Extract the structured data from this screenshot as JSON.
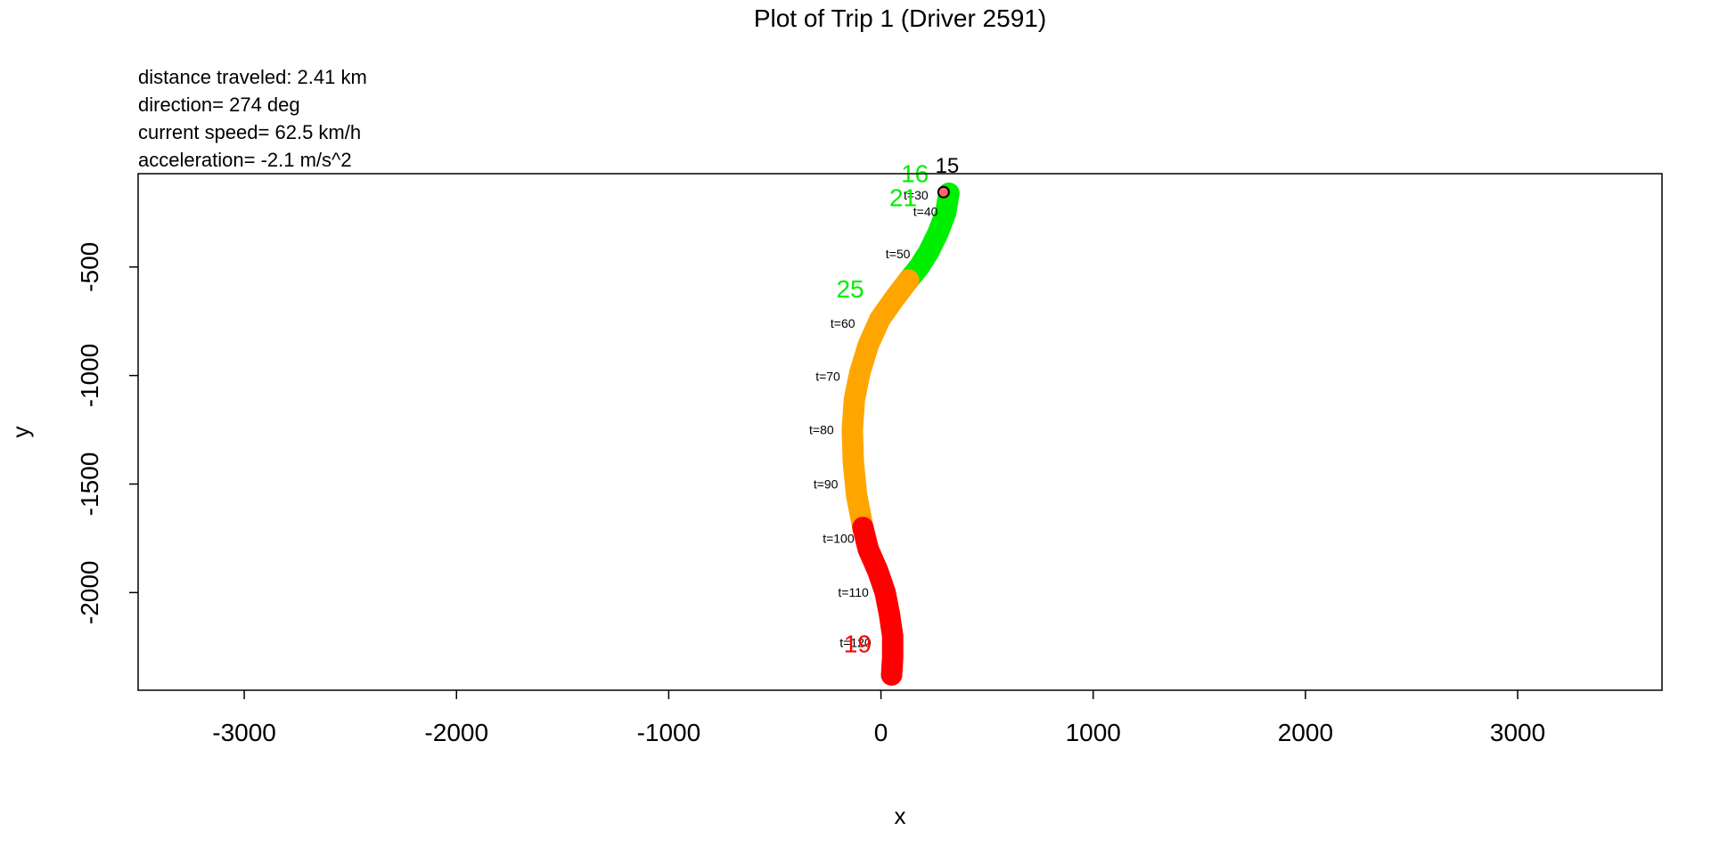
{
  "chart_data": {
    "type": "line",
    "title": "Plot of Trip 1 (Driver 2591)",
    "info": {
      "distance": "distance traveled: 2.41 km",
      "direction": "direction=  274 deg",
      "speed": "current speed= 62.5 km/h",
      "acceleration": "acceleration= -2.1 m/s^2"
    },
    "xlabel": "x",
    "ylabel": "y",
    "xlim": [
      -3500,
      3680
    ],
    "ylim": [
      -2450,
      -70
    ],
    "x_ticks": [
      -3000,
      -2000,
      -1000,
      0,
      1000,
      2000,
      3000
    ],
    "x_tick_labels": [
      "-3000",
      "-2000",
      "-1000",
      "0",
      "1000",
      "2000",
      "3000"
    ],
    "y_ticks": [
      -500,
      -1000,
      -1500,
      -2000
    ],
    "y_tick_labels": [
      "-500",
      "-1000",
      "-1500",
      "-2000"
    ],
    "start_point": {
      "x": 295,
      "y": -155,
      "label": "15"
    },
    "series": [
      {
        "color": "#00ee00",
        "points": [
          [
            320,
            -160
          ],
          [
            305,
            -250
          ],
          [
            270,
            -340
          ],
          [
            225,
            -430
          ],
          [
            180,
            -500
          ],
          [
            130,
            -560
          ]
        ]
      },
      {
        "color": "#ffa500",
        "points": [
          [
            130,
            -560
          ],
          [
            60,
            -650
          ],
          [
            -5,
            -740
          ],
          [
            -60,
            -860
          ],
          [
            -100,
            -990
          ],
          [
            -125,
            -1110
          ],
          [
            -135,
            -1250
          ],
          [
            -130,
            -1400
          ],
          [
            -115,
            -1550
          ],
          [
            -85,
            -1700
          ]
        ]
      },
      {
        "color": "#ff0000",
        "points": [
          [
            -85,
            -1700
          ],
          [
            -60,
            -1800
          ],
          [
            -15,
            -1900
          ],
          [
            20,
            -2000
          ],
          [
            40,
            -2100
          ],
          [
            55,
            -2200
          ],
          [
            55,
            -2300
          ],
          [
            50,
            -2380
          ]
        ]
      }
    ],
    "time_labels": [
      {
        "text": "t=30",
        "x": 165,
        "y": -190
      },
      {
        "text": "t=40",
        "x": 210,
        "y": -265
      },
      {
        "text": "t=50",
        "x": 80,
        "y": -460
      },
      {
        "text": "t=60",
        "x": -180,
        "y": -780
      },
      {
        "text": "t=70",
        "x": -250,
        "y": -1025
      },
      {
        "text": "t=80",
        "x": -280,
        "y": -1270
      },
      {
        "text": "t=90",
        "x": -260,
        "y": -1520
      },
      {
        "text": "t=100",
        "x": -200,
        "y": -1770
      },
      {
        "text": "t=110",
        "x": -130,
        "y": -2020
      },
      {
        "text": "t=120",
        "x": -120,
        "y": -2250
      }
    ],
    "speed_labels": [
      {
        "text": "16",
        "x": 160,
        "y": -110,
        "color": "#00ee00"
      },
      {
        "text": "21",
        "x": 105,
        "y": -220,
        "color": "#00ee00"
      },
      {
        "text": "25",
        "x": -145,
        "y": -640,
        "color": "#00ee00"
      },
      {
        "text": "19",
        "x": -110,
        "y": -2275,
        "color": "#ff0000"
      }
    ]
  }
}
